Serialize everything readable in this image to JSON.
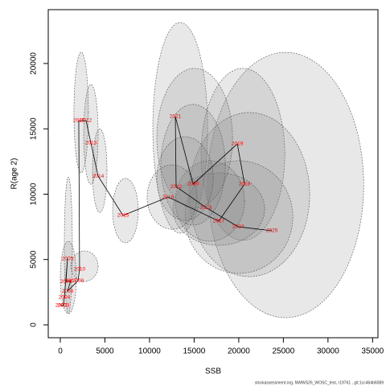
{
  "chart_data": {
    "type": "line",
    "xlabel": "SSB",
    "ylabel": "R(age 2)",
    "footer": "stockassessment.org, NWWS26_WOSC_test, r19761 , git:1cc464b6089",
    "x": [
      90,
      360,
      450,
      810,
      630,
      1170,
      810,
      1980,
      2160,
      2070,
      2890,
      3430,
      4240,
      7030,
      12080,
      17760,
      20650,
      19840,
      14880,
      12890,
      12980,
      16320,
      19930,
      23720
    ],
    "values": [
      1480,
      1480,
      2090,
      5050,
      3320,
      3380,
      2580,
      3380,
      4250,
      15630,
      15630,
      13910,
      11380,
      8370,
      9780,
      7940,
      10770,
      13850,
      10770,
      15940,
      10580,
      8980,
      7510,
      7200
    ],
    "point_labels": [
      "2002",
      "2003",
      "2004",
      "2005",
      "2006",
      "2007",
      "2008",
      "2009",
      "2010",
      "2011",
      "2012",
      "2013",
      "2014",
      "2015",
      "2016",
      "2017",
      "2018",
      "2019",
      "2020",
      "2021",
      "2022",
      "2023",
      "2024",
      "2025"
    ],
    "line_color": "#000000",
    "label_color": "#ff0000",
    "ellipse_color": "#808080",
    "ellipses": [
      {
        "cx": 25250,
        "cy": 10700,
        "rx": 8750,
        "ry": 10150
      },
      {
        "cx": 13440,
        "cy": 15080,
        "rx": 3070,
        "ry": 8060
      },
      {
        "cx": 20470,
        "cy": 13050,
        "rx": 4690,
        "ry": 6580
      },
      {
        "cx": 21190,
        "cy": 9970,
        "rx": 6760,
        "ry": 6280
      },
      {
        "cx": 20020,
        "cy": 8250,
        "rx": 6040,
        "ry": 4310
      },
      {
        "cx": 17760,
        "cy": 8860,
        "rx": 5140,
        "ry": 2770
      },
      {
        "cx": 16770,
        "cy": 9480,
        "rx": 3880,
        "ry": 3080
      },
      {
        "cx": 15060,
        "cy": 14280,
        "rx": 4240,
        "ry": 5350
      },
      {
        "cx": 14880,
        "cy": 12250,
        "rx": 3610,
        "ry": 4620
      },
      {
        "cx": 13980,
        "cy": 11200,
        "rx": 3160,
        "ry": 3200
      },
      {
        "cx": 12530,
        "cy": 9780,
        "rx": 2800,
        "ry": 2460
      },
      {
        "cx": 7300,
        "cy": 8740,
        "rx": 1440,
        "ry": 2460
      },
      {
        "cx": 4420,
        "cy": 11800,
        "rx": 810,
        "ry": 3200
      },
      {
        "cx": 3430,
        "cy": 14580,
        "rx": 810,
        "ry": 3820
      },
      {
        "cx": 2340,
        "cy": 16250,
        "rx": 810,
        "ry": 4620
      },
      {
        "cx": 2710,
        "cy": 4490,
        "rx": 1530,
        "ry": 1170
      },
      {
        "cx": 900,
        "cy": 6090,
        "rx": 450,
        "ry": 5230
      },
      {
        "cx": 900,
        "cy": 3630,
        "rx": 900,
        "ry": 2770
      }
    ],
    "xlim": [
      -1350,
      35600
    ],
    "ylim": [
      -985,
      24120
    ],
    "xticks": [
      0,
      5000,
      10000,
      15000,
      20000,
      25000,
      30000,
      35000
    ],
    "yticks": [
      0,
      5000,
      10000,
      15000,
      20000
    ]
  }
}
